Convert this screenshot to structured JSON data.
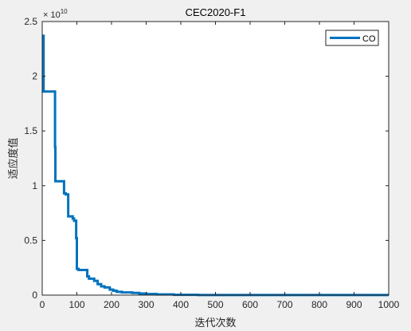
{
  "chart_data": {
    "type": "line",
    "title": "CEC2020-F1",
    "xlabel": "迭代次数",
    "ylabel": "适应度值",
    "exponent_base": "× 10",
    "exponent_power": "10",
    "xlim": [
      0,
      1000
    ],
    "ylim": [
      0,
      2.5
    ],
    "y_scale_factor": 10000000000,
    "grid": false,
    "legend_position": "top-right",
    "x_ticks": [
      0,
      100,
      200,
      300,
      400,
      500,
      600,
      700,
      800,
      900,
      1000
    ],
    "x_tick_labels": [
      "0",
      "100",
      "200",
      "300",
      "400",
      "500",
      "600",
      "700",
      "800",
      "900",
      "1000"
    ],
    "y_ticks": [
      0,
      0.5,
      1,
      1.5,
      2,
      2.5
    ],
    "y_tick_labels": [
      "0",
      "0.5",
      "1",
      "1.5",
      "2",
      "2.5"
    ],
    "series": [
      {
        "name": "CO",
        "color": "#0072BD",
        "x": [
          1,
          4,
          4,
          37,
          37,
          38,
          38,
          63,
          63,
          68,
          68,
          75,
          75,
          88,
          88,
          92,
          92,
          98,
          98,
          100,
          100,
          105,
          105,
          130,
          130,
          135,
          135,
          150,
          150,
          160,
          160,
          170,
          170,
          180,
          180,
          195,
          195,
          205,
          205,
          215,
          215,
          230,
          230,
          260,
          260,
          280,
          280,
          300,
          300,
          330,
          330,
          380,
          380,
          450,
          450,
          600,
          600,
          1000
        ],
        "y": [
          2.37,
          2.37,
          1.86,
          1.86,
          1.35,
          1.35,
          1.04,
          1.04,
          0.93,
          0.93,
          0.92,
          0.92,
          0.72,
          0.72,
          0.7,
          0.7,
          0.68,
          0.68,
          0.52,
          0.52,
          0.24,
          0.24,
          0.23,
          0.23,
          0.17,
          0.17,
          0.15,
          0.15,
          0.13,
          0.13,
          0.1,
          0.1,
          0.08,
          0.08,
          0.07,
          0.07,
          0.05,
          0.05,
          0.04,
          0.04,
          0.03,
          0.03,
          0.025,
          0.025,
          0.02,
          0.02,
          0.015,
          0.015,
          0.01,
          0.01,
          0.006,
          0.006,
          0.003,
          0.003,
          0.001,
          0.001,
          0.0005,
          0.0005
        ]
      }
    ]
  }
}
